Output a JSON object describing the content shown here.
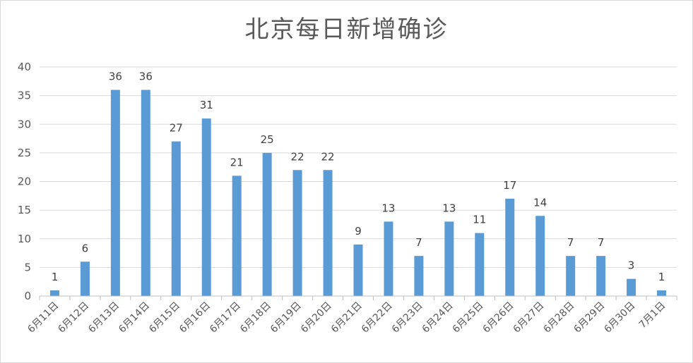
{
  "chart_data": {
    "type": "bar",
    "title": "北京每日新增确诊",
    "xlabel": "",
    "ylabel": "",
    "ylim": [
      0,
      40
    ],
    "yticks": [
      0,
      5,
      10,
      15,
      20,
      25,
      30,
      35,
      40
    ],
    "grid": true,
    "legend": "none",
    "categories": [
      "6月11日",
      "6月12日",
      "6月13日",
      "6月14日",
      "6月15日",
      "6月16日",
      "6月17日",
      "6月18日",
      "6月19日",
      "6月20日",
      "6月21日",
      "6月22日",
      "6月23日",
      "6月24日",
      "6月25日",
      "6月26日",
      "6月27日",
      "6月28日",
      "6月29日",
      "6月30日",
      "7月1日"
    ],
    "values": [
      1,
      6,
      36,
      36,
      27,
      31,
      21,
      25,
      22,
      22,
      9,
      13,
      7,
      13,
      11,
      17,
      14,
      7,
      7,
      3,
      1
    ],
    "colors": {
      "bar": "#5b9bd5",
      "grid": "#d9d9d9",
      "axis": "#bfbfbf",
      "text": "#595959"
    }
  }
}
